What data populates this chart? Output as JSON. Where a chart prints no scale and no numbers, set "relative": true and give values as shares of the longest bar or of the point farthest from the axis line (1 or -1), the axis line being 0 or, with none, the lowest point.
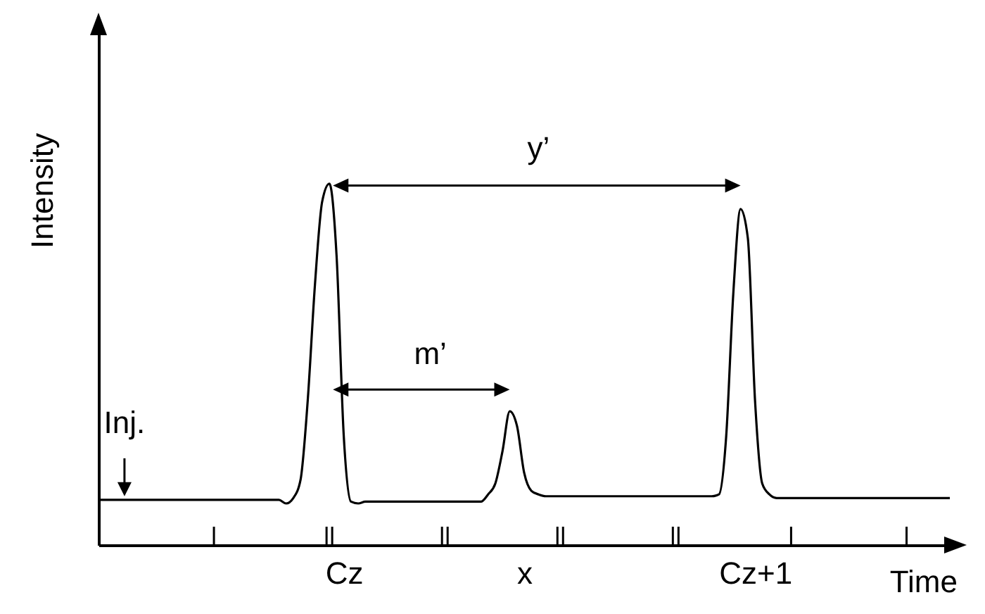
{
  "chart_data": {
    "type": "line",
    "relative": true,
    "xlabel": "Time",
    "ylabel": "Intensity",
    "categories": [
      null,
      null,
      null,
      null,
      null,
      null,
      null,
      null,
      null,
      null,
      null,
      null,
      null,
      null,
      null,
      null,
      null,
      null,
      null,
      null,
      null,
      null,
      null,
      null,
      null,
      null,
      null,
      null,
      null,
      null,
      null,
      null,
      null,
      null,
      "Cz",
      null,
      null,
      null,
      null,
      null,
      null,
      null,
      null,
      null,
      null,
      null,
      null,
      null,
      null,
      null,
      null,
      null,
      null,
      null,
      null,
      null,
      null,
      null,
      null,
      "x",
      null,
      null,
      null,
      null,
      null,
      null,
      null,
      null,
      null,
      null,
      null,
      null,
      null,
      null,
      null,
      null,
      null,
      null,
      null,
      null,
      null,
      null,
      null,
      null,
      null,
      null,
      null,
      null,
      null,
      null,
      null,
      "Cz+1",
      null,
      null,
      null,
      null,
      null,
      null,
      null,
      null,
      null,
      null,
      null,
      null,
      null,
      null,
      null,
      null,
      null,
      null,
      null,
      null,
      null,
      null,
      null,
      null,
      null,
      null,
      null
    ],
    "series": [
      {
        "color": "#000000",
        "values": [
          0.125,
          0.125,
          0.125,
          0.125,
          0.125,
          0.125,
          0.125,
          0.125,
          0.125,
          0.125,
          0.125,
          0.125,
          0.125,
          0.125,
          0.125,
          0.125,
          0.125,
          0.125,
          0.125,
          0.125,
          0.125,
          0.125,
          0.125,
          0.125,
          0.125,
          0.125,
          0.115,
          0.13,
          0.18,
          0.4,
          0.72,
          0.95,
          1,
          0.8,
          0.3,
          0.12,
          0.115,
          0.12,
          0.12,
          0.12,
          0.12,
          0.12,
          0.12,
          0.12,
          0.12,
          0.12,
          0.12,
          0.12,
          0.12,
          0.12,
          0.12,
          0.12,
          0.12,
          0.12,
          0.14,
          0.17,
          0.26,
          0.37,
          0.33,
          0.2,
          0.15,
          0.14,
          0.135,
          0.135,
          0.135,
          0.135,
          0.135,
          0.135,
          0.135,
          0.135,
          0.135,
          0.135,
          0.135,
          0.135,
          0.135,
          0.135,
          0.135,
          0.135,
          0.135,
          0.135,
          0.135,
          0.135,
          0.135,
          0.135,
          0.135,
          0.135,
          0.14,
          0.3,
          0.7,
          0.93,
          0.85,
          0.4,
          0.17,
          0.14,
          0.13,
          0.13,
          0.13,
          0.13,
          0.13,
          0.13,
          0.13,
          0.13,
          0.13,
          0.13,
          0.13,
          0.13,
          0.13,
          0.13,
          0.13,
          0.13,
          0.13,
          0.13,
          0.13,
          0.13,
          0.13,
          0.13,
          0.13,
          0.13,
          0.13
        ]
      }
    ],
    "annotations": [
      "Inj.",
      "m’",
      "y’"
    ]
  }
}
